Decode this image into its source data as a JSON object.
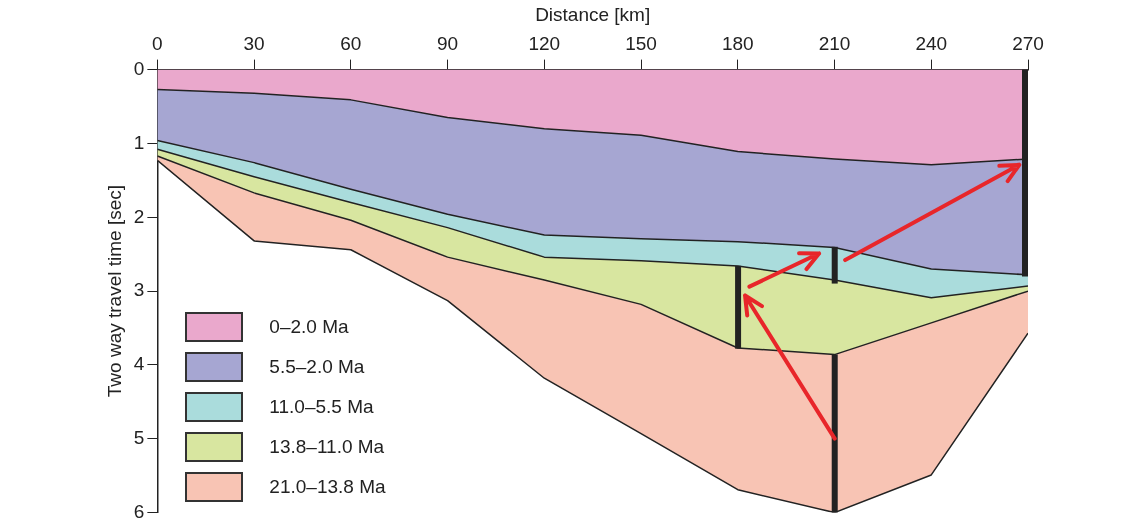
{
  "chart_data": {
    "type": "area",
    "xlabel": "Distance [km]",
    "ylabel": "Two way travel time [sec]",
    "x": [
      0,
      30,
      60,
      90,
      120,
      150,
      180,
      210,
      240,
      270
    ],
    "series": [
      {
        "name": "0–2.0 Ma",
        "color": "#eaa8cc",
        "values": [
          0.27,
          0.32,
          0.41,
          0.65,
          0.8,
          0.89,
          1.11,
          1.21,
          1.29,
          1.21
        ]
      },
      {
        "name": "5.5–2.0 Ma",
        "color": "#a6a6d2",
        "values": [
          0.96,
          1.26,
          1.62,
          1.96,
          2.24,
          2.29,
          2.33,
          2.41,
          2.7,
          2.78
        ]
      },
      {
        "name": "11.0–5.5 Ma",
        "color": "#aadcdc",
        "values": [
          1.08,
          1.45,
          1.8,
          2.14,
          2.54,
          2.59,
          2.66,
          2.85,
          3.09,
          2.93
        ]
      },
      {
        "name": "13.8–11.0 Ma",
        "color": "#d8e6a0",
        "values": [
          1.17,
          1.67,
          2.04,
          2.54,
          2.85,
          3.18,
          3.77,
          3.86,
          3.43,
          3.0
        ]
      },
      {
        "name": "21.0–13.8 Ma",
        "color": "#f8c4b4",
        "values": [
          1.23,
          2.32,
          2.44,
          3.13,
          4.18,
          4.93,
          5.69,
          6.0,
          5.49,
          3.57
        ]
      }
    ],
    "xlim": [
      0,
      270
    ],
    "xticks": [
      0,
      30,
      60,
      90,
      120,
      150,
      180,
      210,
      240,
      270
    ],
    "ylim": [
      6,
      0
    ],
    "yticks": [
      0,
      1,
      2,
      3,
      4,
      5,
      6
    ],
    "grid": false,
    "legend": "bottom left",
    "marker": "none",
    "line_style": "solid"
  }
}
